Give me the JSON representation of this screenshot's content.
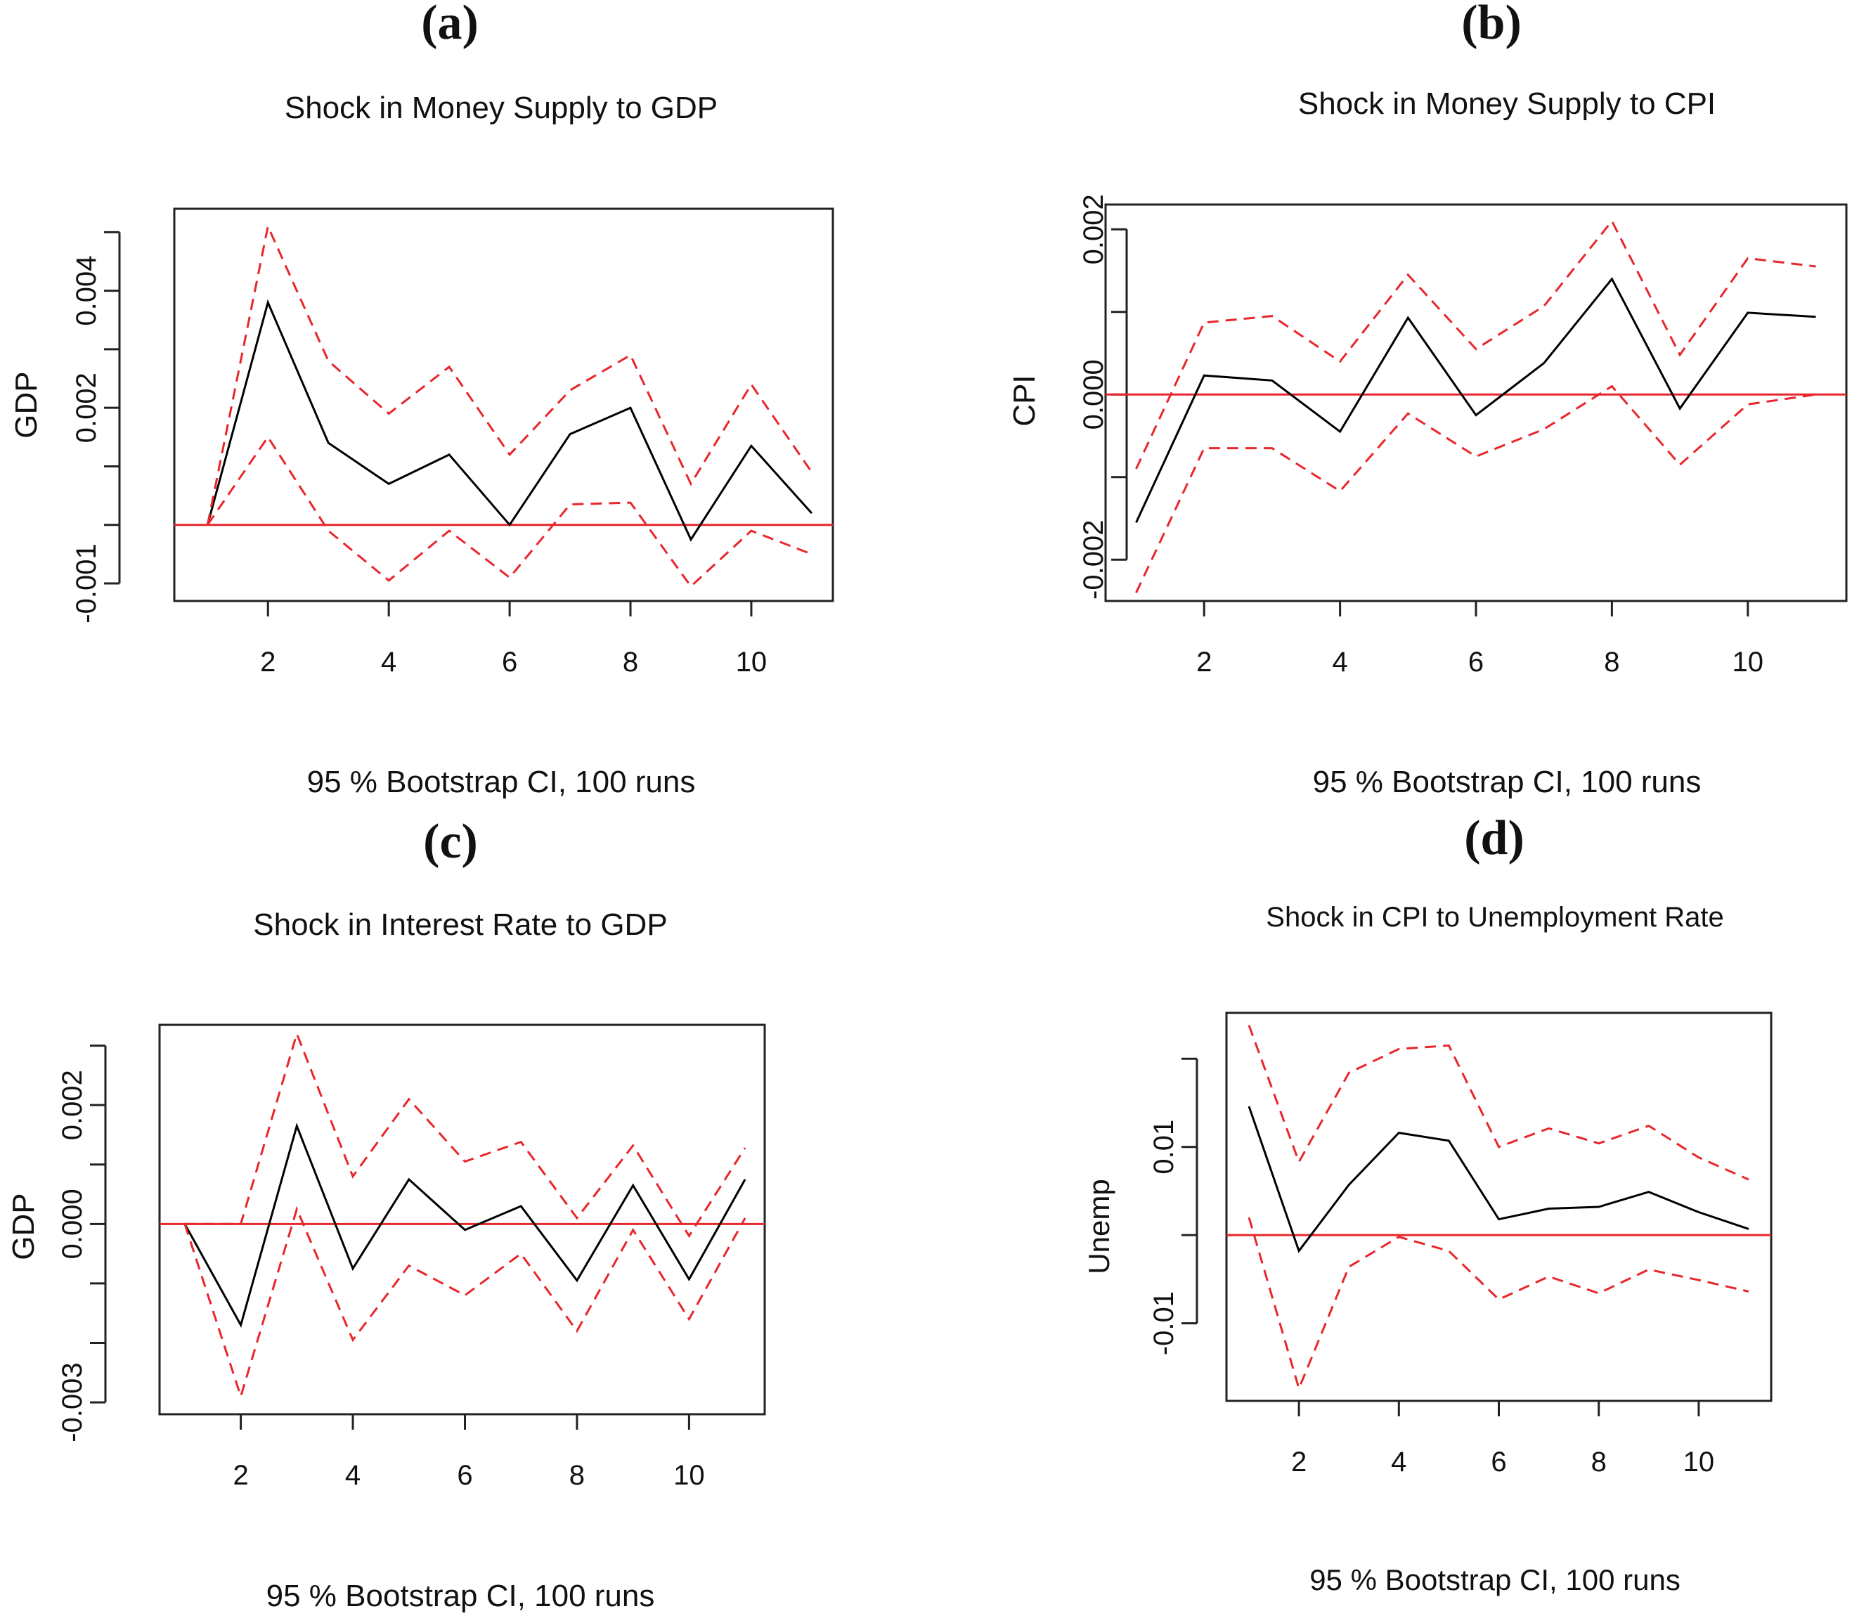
{
  "chart_data": [
    {
      "type": "line",
      "panel_label": "(a)",
      "title": "Shock in Money Supply to GDP",
      "xlabel": "95 % Bootstrap CI,  100 runs",
      "ylabel": "GDP",
      "xlim": [
        0.45,
        11.35
      ],
      "ylim": [
        -0.0013,
        0.0054
      ],
      "x_ticks": [
        2,
        4,
        6,
        8,
        10
      ],
      "y_ticks": [
        -0.001,
        0,
        0.001,
        0.002,
        0.003,
        0.004,
        0.005
      ],
      "y_tick_labels": [
        "-0.001",
        "",
        "",
        "0.002",
        "",
        "0.004",
        ""
      ],
      "grid": false,
      "zero_line": 0,
      "x": [
        1,
        2,
        3,
        4,
        5,
        6,
        7,
        8,
        9,
        10,
        11
      ],
      "series": [
        {
          "role": "irf",
          "style": "solid",
          "color": "#000000",
          "values": [
            0.0,
            0.0038,
            0.0014,
            0.0007,
            0.0012,
            0.0,
            0.00155,
            0.002,
            -0.00025,
            0.00135,
            0.0002
          ]
        },
        {
          "role": "upper",
          "style": "dashed",
          "color": "#e8262b",
          "values": [
            0.0,
            0.0051,
            0.0028,
            0.0019,
            0.0027,
            0.0012,
            0.0023,
            0.0029,
            0.0007,
            0.0024,
            0.0009
          ]
        },
        {
          "role": "lower",
          "style": "dashed",
          "color": "#e8262b",
          "values": [
            0.0,
            0.0015,
            -0.0001,
            -0.00095,
            -0.0001,
            -0.0009,
            0.00035,
            0.00038,
            -0.00105,
            -0.0001,
            -0.0005
          ]
        }
      ]
    },
    {
      "type": "line",
      "panel_label": "(b)",
      "title": "Shock in Money Supply to CPI",
      "xlabel": "95 % Bootstrap CI,  100 runs",
      "ylabel": "CPI",
      "xlim": [
        0.55,
        11.45
      ],
      "ylim": [
        -0.0025,
        0.0023
      ],
      "x_ticks": [
        2,
        4,
        6,
        8,
        10
      ],
      "y_ticks": [
        -0.002,
        -0.001,
        0,
        0.001,
        0.002
      ],
      "y_tick_labels": [
        "-0.002",
        "",
        "0.000",
        "",
        "0.002"
      ],
      "grid": false,
      "zero_line": 0,
      "x": [
        1,
        2,
        3,
        4,
        5,
        6,
        7,
        8,
        9,
        10,
        11
      ],
      "series": [
        {
          "role": "irf",
          "style": "solid",
          "color": "#000000",
          "values": [
            -0.00155,
            0.00023,
            0.00017,
            -0.00045,
            0.00093,
            -0.00025,
            0.00038,
            0.0014,
            -0.00017,
            0.00099,
            0.00094
          ]
        },
        {
          "role": "upper",
          "style": "dashed",
          "color": "#e8262b",
          "values": [
            -0.0009,
            0.00087,
            0.00095,
            0.0004,
            0.00145,
            0.00055,
            0.00107,
            0.0021,
            0.00048,
            0.00165,
            0.00155
          ]
        },
        {
          "role": "lower",
          "style": "dashed",
          "color": "#e8262b",
          "values": [
            -0.0024,
            -0.00065,
            -0.00065,
            -0.00117,
            -0.00023,
            -0.00075,
            -0.00042,
            0.0001,
            -0.00085,
            -0.00012,
            0.0
          ]
        }
      ]
    },
    {
      "type": "line",
      "panel_label": "(c)",
      "title": "Shock in Interest Rate to GDP",
      "xlabel": "95 % Bootstrap CI,  100 runs",
      "ylabel": "GDP",
      "xlim": [
        0.55,
        11.35
      ],
      "ylim": [
        -0.0032,
        0.00335
      ],
      "x_ticks": [
        2,
        4,
        6,
        8,
        10
      ],
      "y_ticks": [
        -0.003,
        -0.002,
        -0.001,
        0,
        0.001,
        0.002,
        0.003
      ],
      "y_tick_labels": [
        "-0.003",
        "",
        "",
        "0.000",
        "",
        "0.002",
        ""
      ],
      "grid": false,
      "zero_line": 0,
      "x": [
        1,
        2,
        3,
        4,
        5,
        6,
        7,
        8,
        9,
        10,
        11
      ],
      "series": [
        {
          "role": "irf",
          "style": "solid",
          "color": "#000000",
          "values": [
            0.0,
            -0.0017,
            0.00165,
            -0.00075,
            0.00075,
            -0.0001,
            0.0003,
            -0.00095,
            0.00065,
            -0.00093,
            0.00075
          ]
        },
        {
          "role": "upper",
          "style": "dashed",
          "color": "#e8262b",
          "values": [
            0.0,
            0.0,
            0.0032,
            0.0008,
            0.0021,
            0.00105,
            0.00138,
            0.0001,
            0.00132,
            -0.0002,
            0.00128
          ]
        },
        {
          "role": "lower",
          "style": "dashed",
          "color": "#e8262b",
          "values": [
            0.0,
            -0.0029,
            0.00025,
            -0.00195,
            -0.0007,
            -0.0012,
            -0.0005,
            -0.0018,
            -0.0001,
            -0.0016,
            0.0001
          ]
        }
      ]
    },
    {
      "type": "line",
      "panel_label": "(d)",
      "title": "Shock in CPI to Unemployment Rate",
      "xlabel": "95 % Bootstrap CI,  100 runs",
      "ylabel": "Unemp",
      "xlim": [
        0.55,
        11.45
      ],
      "ylim": [
        -0.0188,
        0.0252
      ],
      "x_ticks": [
        2,
        4,
        6,
        8,
        10
      ],
      "y_ticks": [
        -0.01,
        0,
        0.01,
        0.02
      ],
      "y_tick_labels": [
        "-0.01",
        "",
        "0.01",
        ""
      ],
      "grid": false,
      "zero_line": 0,
      "x": [
        1,
        2,
        3,
        4,
        5,
        6,
        7,
        8,
        9,
        10,
        11
      ],
      "series": [
        {
          "role": "irf",
          "style": "solid",
          "color": "#000000",
          "values": [
            0.0146,
            -0.0018,
            0.0057,
            0.0116,
            0.0107,
            0.0018,
            0.003,
            0.0032,
            0.0049,
            0.0026,
            0.0007
          ]
        },
        {
          "role": "upper",
          "style": "dashed",
          "color": "#e8262b",
          "values": [
            0.0238,
            0.0083,
            0.0184,
            0.0211,
            0.0215,
            0.01,
            0.0121,
            0.0104,
            0.0124,
            0.0088,
            0.0063
          ]
        },
        {
          "role": "lower",
          "style": "dashed",
          "color": "#e8262b",
          "values": [
            0.002,
            -0.0174,
            -0.0036,
            -0.0002,
            -0.0018,
            -0.0073,
            -0.0047,
            -0.0066,
            -0.0039,
            -0.0051,
            -0.0064
          ]
        }
      ]
    }
  ]
}
